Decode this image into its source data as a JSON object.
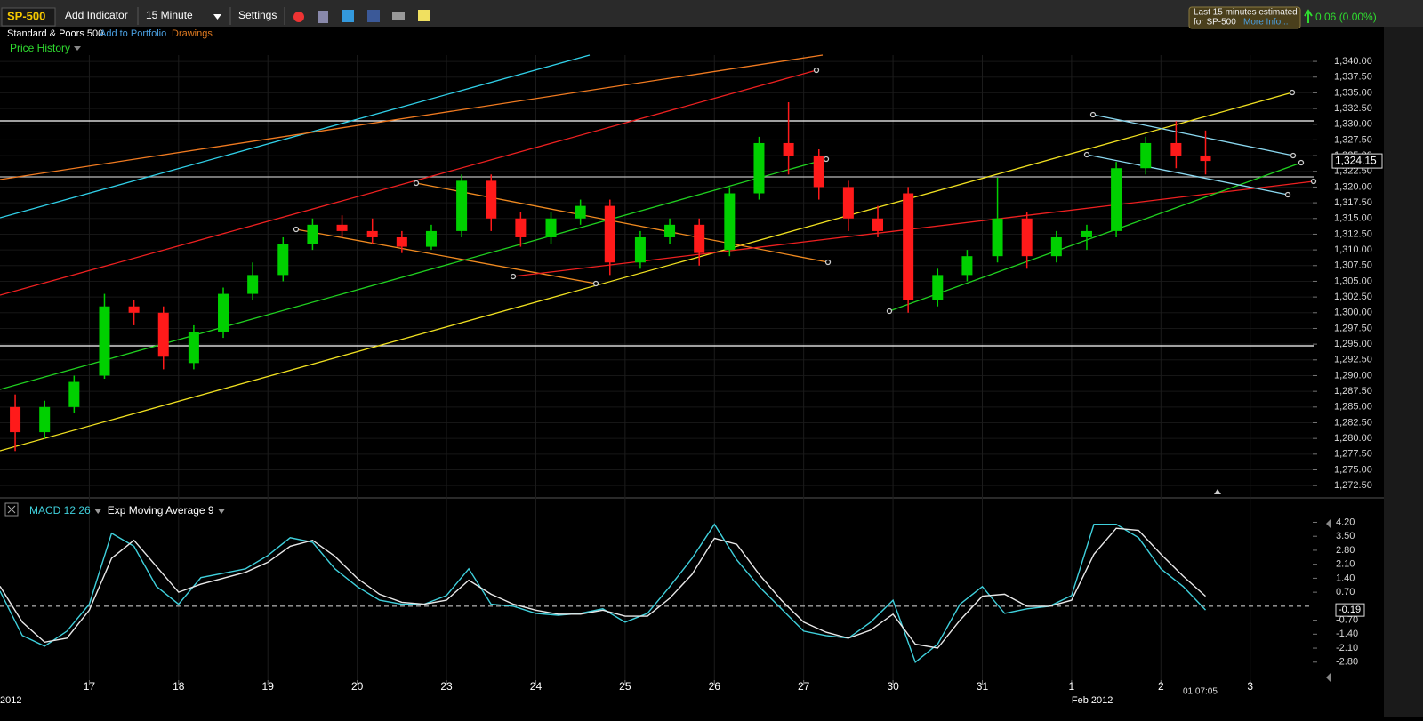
{
  "ui": {
    "symbol": "SP-500",
    "add_indicator": "Add Indicator",
    "interval": "15 Minute",
    "settings": "Settings",
    "name": "Standard & Poors 500",
    "add_to_portfolio": "Add to Portfolio",
    "drawings": "Drawings",
    "notice_line1": "Last 15 minutes estimated",
    "notice_line2": "for SP-500",
    "more_info": "More Info...",
    "change": "0.06 (0.00%)",
    "clock": "01:07:05"
  },
  "chart_data": [
    {
      "type": "candlestick",
      "title": "Price History",
      "x": [
        0.17,
        0.5,
        0.83,
        1.17,
        1.5,
        1.83,
        2.17,
        2.5,
        2.83,
        3.17,
        3.5,
        3.83,
        4.17,
        4.5,
        4.83,
        5.17,
        5.5,
        5.83,
        6.17,
        6.5,
        6.83,
        7.17,
        7.5,
        7.83,
        8.17,
        8.5,
        8.83,
        9.17,
        9.5,
        9.83,
        10.17,
        10.5,
        10.83,
        11.17,
        11.5,
        11.83,
        12.17,
        12.5,
        12.83,
        13.17,
        13.5
      ],
      "open": [
        1285,
        1281,
        1285,
        1290,
        1301,
        1300,
        1292,
        1297,
        1303,
        1306,
        1311,
        1314,
        1313,
        1312,
        1310.5,
        1313,
        1321,
        1315,
        1312,
        1315,
        1317,
        1308,
        1312,
        1314,
        1310,
        1319,
        1327,
        1325,
        1320,
        1315,
        1319,
        1302,
        1306,
        1309,
        1315,
        1309,
        1312,
        1313,
        1323,
        1327,
        1325
      ],
      "high": [
        1287,
        1286,
        1290,
        1303,
        1302,
        1301,
        1298,
        1304,
        1308,
        1312,
        1315,
        1315.5,
        1315,
        1313,
        1314,
        1322,
        1322,
        1316,
        1316,
        1318,
        1318,
        1313,
        1315,
        1315,
        1320,
        1328,
        1333.5,
        1326,
        1321,
        1317,
        1320,
        1307,
        1310,
        1321.5,
        1316,
        1313,
        1314,
        1324,
        1328,
        1330.5,
        1329
      ],
      "low": [
        1278,
        1280,
        1284,
        1289.5,
        1298,
        1291,
        1291,
        1296,
        1302,
        1305,
        1310,
        1312,
        1311,
        1309.5,
        1310,
        1312,
        1313,
        1310.5,
        1311,
        1314,
        1306,
        1307,
        1311,
        1307.5,
        1309,
        1318,
        1322,
        1318,
        1313,
        1312,
        1300,
        1301,
        1305,
        1308,
        1307,
        1308,
        1310,
        1312,
        1322,
        1323,
        1322
      ],
      "close": [
        1281,
        1285,
        1289,
        1301,
        1300,
        1293,
        1297,
        1303,
        1306,
        1311,
        1314,
        1313,
        1312,
        1310.5,
        1313,
        1321,
        1315,
        1312,
        1315,
        1317,
        1308,
        1312,
        1314,
        1309.5,
        1319,
        1327,
        1325,
        1320,
        1315,
        1313,
        1302,
        1306,
        1309,
        1315,
        1309,
        1312,
        1313,
        1323,
        1327,
        1325,
        1324.15
      ],
      "up_color": "#00d000",
      "down_color": "#ff1a1a",
      "xlim": [
        0,
        14.7
      ],
      "ylim": [
        1271.25,
        1341
      ],
      "yticks": [
        {
          "value": 1272.5,
          "label": "1,272.50"
        },
        {
          "value": 1275,
          "label": "1,275.00"
        },
        {
          "value": 1277.5,
          "label": "1,277.50"
        },
        {
          "value": 1280,
          "label": "1,280.00"
        },
        {
          "value": 1282.5,
          "label": "1,282.50"
        },
        {
          "value": 1285,
          "label": "1,285.00"
        },
        {
          "value": 1287.5,
          "label": "1,287.50"
        },
        {
          "value": 1290,
          "label": "1,290.00"
        },
        {
          "value": 1292.5,
          "label": "1,292.50"
        },
        {
          "value": 1295,
          "label": "1,295.00"
        },
        {
          "value": 1297.5,
          "label": "1,297.50"
        },
        {
          "value": 1300,
          "label": "1,300.00"
        },
        {
          "value": 1302.5,
          "label": "1,302.50"
        },
        {
          "value": 1305,
          "label": "1,305.00"
        },
        {
          "value": 1307.5,
          "label": "1,307.50"
        },
        {
          "value": 1310,
          "label": "1,310.00"
        },
        {
          "value": 1312.5,
          "label": "1,312.50"
        },
        {
          "value": 1315,
          "label": "1,315.00"
        },
        {
          "value": 1317.5,
          "label": "1,317.50"
        },
        {
          "value": 1320,
          "label": "1,320.00"
        },
        {
          "value": 1322.5,
          "label": "1,322.50"
        },
        {
          "value": 1325,
          "label": "1,325.00"
        },
        {
          "value": 1327.5,
          "label": "1,327.50"
        },
        {
          "value": 1330,
          "label": "1,330.00"
        },
        {
          "value": 1332.5,
          "label": "1,332.50"
        },
        {
          "value": 1335,
          "label": "1,335.00"
        },
        {
          "value": 1337.5,
          "label": "1,337.50"
        },
        {
          "value": 1340,
          "label": "1,340.00"
        }
      ],
      "last_value": {
        "value": 1324.15,
        "label": "1,324.15"
      },
      "grid": true
    },
    {
      "type": "line",
      "x": [
        0,
        0.25,
        0.5,
        0.75,
        1,
        1.25,
        1.5,
        1.75,
        2,
        2.25,
        2.5,
        2.75,
        3,
        3.25,
        3.5,
        3.75,
        4,
        4.25,
        4.5,
        4.75,
        5,
        5.25,
        5.5,
        5.75,
        6,
        6.25,
        6.5,
        6.75,
        7,
        7.25,
        7.5,
        7.75,
        8,
        8.25,
        8.5,
        8.75,
        9,
        9.25,
        9.5,
        9.75,
        10,
        10.25,
        10.5,
        10.75,
        11,
        11.25,
        11.5,
        11.75,
        12,
        12.25,
        12.5,
        12.75,
        13,
        13.25,
        13.5
      ],
      "series": [
        {
          "name": "MACD 12 26",
          "color": "#3fd0dc",
          "values": [
            0.76,
            -1.47,
            -2.0,
            -1.25,
            0.1,
            3.65,
            3.0,
            1.0,
            0.1,
            1.43,
            1.65,
            1.87,
            2.54,
            3.43,
            3.2,
            1.87,
            0.98,
            0.3,
            0.1,
            0.1,
            0.53,
            1.87,
            0.1,
            0,
            -0.36,
            -0.45,
            -0.36,
            -0.13,
            -0.8,
            -0.36,
            0.98,
            2.4,
            4.1,
            2.32,
            0.98,
            -0.13,
            -1.25,
            -1.47,
            -1.6,
            -0.8,
            0.3,
            -2.8,
            -1.9,
            0.1,
            0.98,
            -0.36,
            -0.13,
            0,
            0.53,
            4.1,
            4.1,
            3.43,
            1.87,
            0.98,
            -0.19
          ]
        },
        {
          "name": "Exp Moving Average 9",
          "color": "#e8e8e8",
          "values": [
            1.0,
            -0.8,
            -1.8,
            -1.6,
            -0.2,
            2.4,
            3.3,
            2.0,
            0.7,
            1.1,
            1.4,
            1.7,
            2.2,
            3.0,
            3.3,
            2.5,
            1.4,
            0.6,
            0.2,
            0.1,
            0.3,
            1.3,
            0.6,
            0.1,
            -0.2,
            -0.4,
            -0.4,
            -0.2,
            -0.5,
            -0.5,
            0.4,
            1.6,
            3.4,
            3.1,
            1.6,
            0.3,
            -0.8,
            -1.3,
            -1.6,
            -1.2,
            -0.4,
            -1.9,
            -2.1,
            -0.7,
            0.5,
            0.6,
            0.0,
            0.0,
            0.3,
            2.6,
            3.9,
            3.8,
            2.6,
            1.5,
            0.5
          ]
        }
      ],
      "xlim": [
        0,
        14.7
      ],
      "ylim": [
        -3.7,
        5.2
      ],
      "yticks": [
        {
          "value": 4.2,
          "label": "4.20"
        },
        {
          "value": 3.5,
          "label": "3.50"
        },
        {
          "value": 2.8,
          "label": "2.80"
        },
        {
          "value": 2.1,
          "label": "2.10"
        },
        {
          "value": 1.4,
          "label": "1.40"
        },
        {
          "value": 0.7,
          "label": "0.70"
        },
        {
          "value": -0.7,
          "label": "-0.70"
        },
        {
          "value": -1.4,
          "label": "-1.40"
        },
        {
          "value": -2.1,
          "label": "-2.10"
        },
        {
          "value": -2.8,
          "label": "-2.80"
        }
      ],
      "xticks": [
        {
          "value": 1,
          "label": "17"
        },
        {
          "value": 2,
          "label": "18"
        },
        {
          "value": 3,
          "label": "19"
        },
        {
          "value": 4,
          "label": "20"
        },
        {
          "value": 5,
          "label": "23"
        },
        {
          "value": 6,
          "label": "24"
        },
        {
          "value": 7,
          "label": "25"
        },
        {
          "value": 8,
          "label": "26"
        },
        {
          "value": 9,
          "label": "27"
        },
        {
          "value": 10,
          "label": "30"
        },
        {
          "value": 11,
          "label": "31"
        },
        {
          "value": 12,
          "label": "1"
        },
        {
          "value": 13,
          "label": "2"
        },
        {
          "value": 14,
          "label": "3"
        }
      ],
      "xticks_secondary": [
        {
          "value": 0,
          "label": "2012"
        },
        {
          "value": 12,
          "label": "Feb 2012"
        }
      ],
      "last_value": -0.19
    }
  ]
}
